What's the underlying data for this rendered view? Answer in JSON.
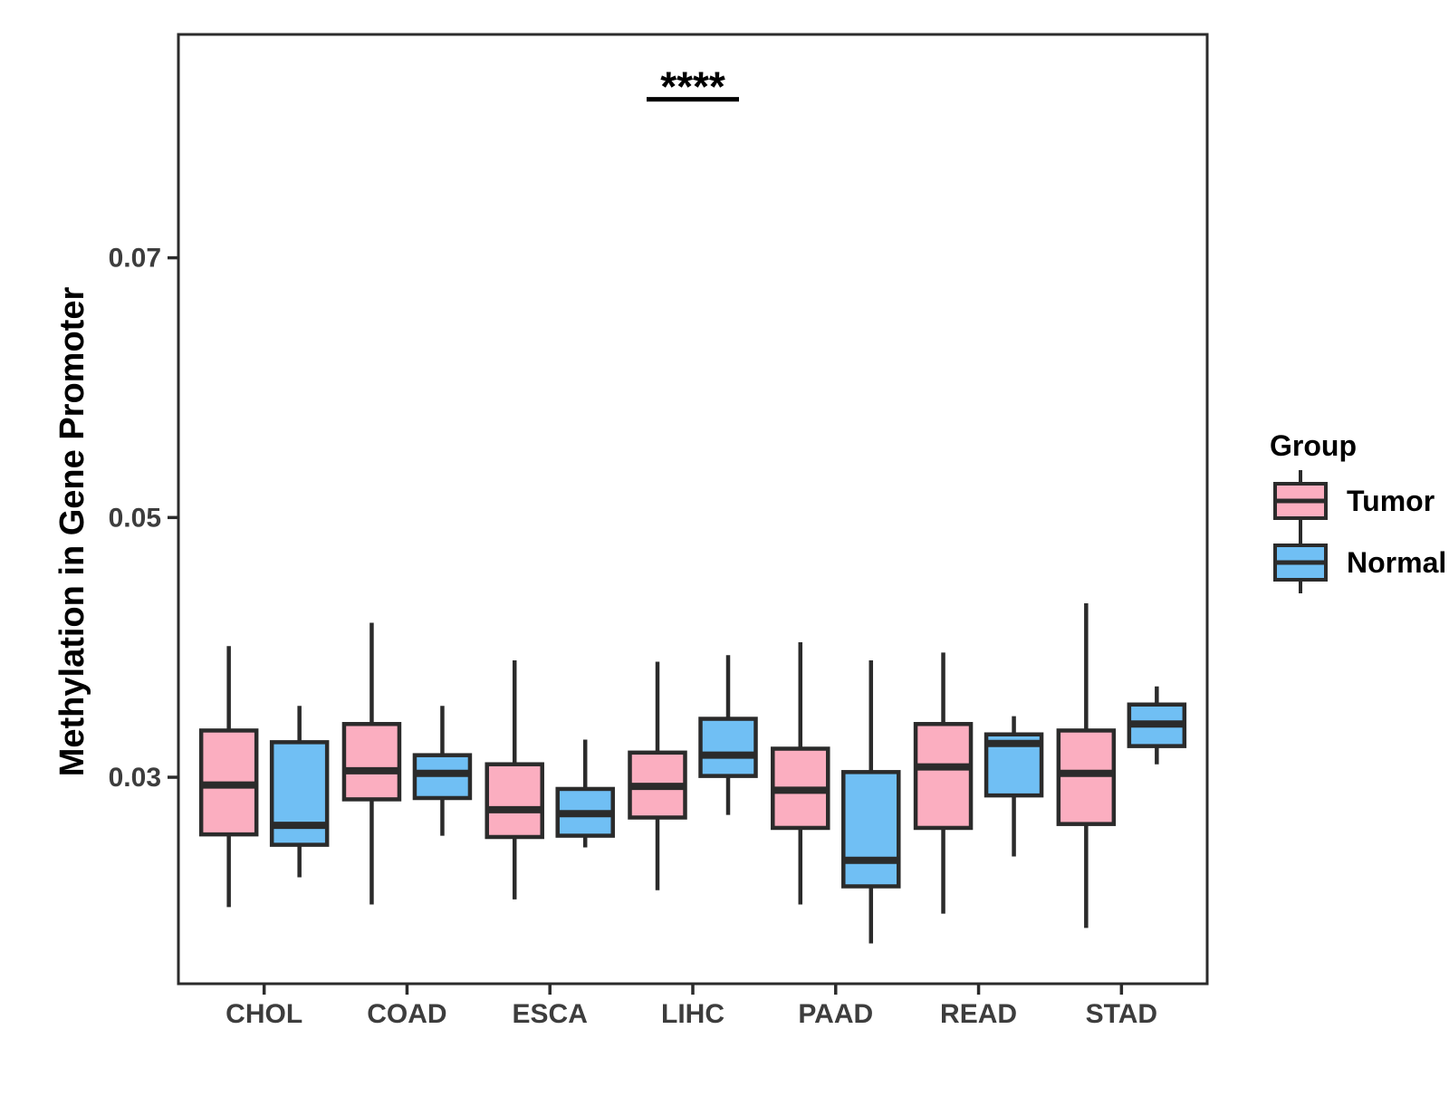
{
  "chart_data": {
    "type": "boxplot",
    "title": "",
    "xlabel": "",
    "ylabel": "Methylation in Gene Promoter",
    "categories": [
      "CHOL",
      "COAD",
      "ESCA",
      "LIHC",
      "PAAD",
      "READ",
      "STAD"
    ],
    "y_axis": {
      "range": [
        0.0141,
        0.0872
      ],
      "ticks": [
        {
          "label": "0.03",
          "value": 0.03
        },
        {
          "label": "0.05",
          "value": 0.05
        },
        {
          "label": "0.07",
          "value": 0.07
        }
      ]
    },
    "grid": "off",
    "legend_position": "right",
    "groups": [
      {
        "name": "Tumor",
        "color": "#FBAEC0"
      },
      {
        "name": "Normal",
        "color": "#70BFF4"
      }
    ],
    "series": [
      {
        "name": "Tumor",
        "boxes": [
          {
            "category": "CHOL",
            "low": 0.02,
            "q1": 0.0256,
            "median": 0.0294,
            "q3": 0.0336,
            "high": 0.0401
          },
          {
            "category": "COAD",
            "low": 0.0202,
            "q1": 0.0283,
            "median": 0.0305,
            "q3": 0.0341,
            "high": 0.0419
          },
          {
            "category": "ESCA",
            "low": 0.0206,
            "q1": 0.0254,
            "median": 0.0275,
            "q3": 0.031,
            "high": 0.039
          },
          {
            "category": "LIHC",
            "low": 0.0213,
            "q1": 0.0269,
            "median": 0.0293,
            "q3": 0.0319,
            "high": 0.0389
          },
          {
            "category": "PAAD",
            "low": 0.0202,
            "q1": 0.0261,
            "median": 0.029,
            "q3": 0.0322,
            "high": 0.0404
          },
          {
            "category": "READ",
            "low": 0.0195,
            "q1": 0.0261,
            "median": 0.0308,
            "q3": 0.0341,
            "high": 0.0396
          },
          {
            "category": "STAD",
            "low": 0.0184,
            "q1": 0.0264,
            "median": 0.0303,
            "q3": 0.0336,
            "high": 0.0434
          }
        ]
      },
      {
        "name": "Normal",
        "boxes": [
          {
            "category": "CHOL",
            "low": 0.0223,
            "q1": 0.0248,
            "median": 0.0263,
            "q3": 0.0327,
            "high": 0.0355
          },
          {
            "category": "COAD",
            "low": 0.0255,
            "q1": 0.0284,
            "median": 0.0303,
            "q3": 0.0317,
            "high": 0.0355
          },
          {
            "category": "ESCA",
            "low": 0.0246,
            "q1": 0.0255,
            "median": 0.0272,
            "q3": 0.0291,
            "high": 0.0329
          },
          {
            "category": "LIHC",
            "low": 0.0271,
            "q1": 0.0301,
            "median": 0.0317,
            "q3": 0.0345,
            "high": 0.0394
          },
          {
            "category": "PAAD",
            "low": 0.0172,
            "q1": 0.0216,
            "median": 0.0236,
            "q3": 0.0304,
            "high": 0.039
          },
          {
            "category": "READ",
            "low": 0.0239,
            "q1": 0.0286,
            "median": 0.0326,
            "q3": 0.0333,
            "high": 0.0347
          },
          {
            "category": "STAD",
            "low": 0.031,
            "q1": 0.0324,
            "median": 0.0341,
            "q3": 0.0356,
            "high": 0.037
          }
        ]
      }
    ],
    "annotation": {
      "text": "****",
      "category": "LIHC",
      "bar_value": 0.0822
    },
    "legend": {
      "title": "Group",
      "items": [
        {
          "label": "Tumor",
          "color": "#FBAEC0"
        },
        {
          "label": "Normal",
          "color": "#70BFF4"
        }
      ]
    },
    "colors": {
      "box_stroke": "#2B2B2B",
      "panel_border": "#2B2B2B",
      "axis_text": "#3D3D3D",
      "title_text": "#000000",
      "background": "#FFFFFF"
    }
  }
}
